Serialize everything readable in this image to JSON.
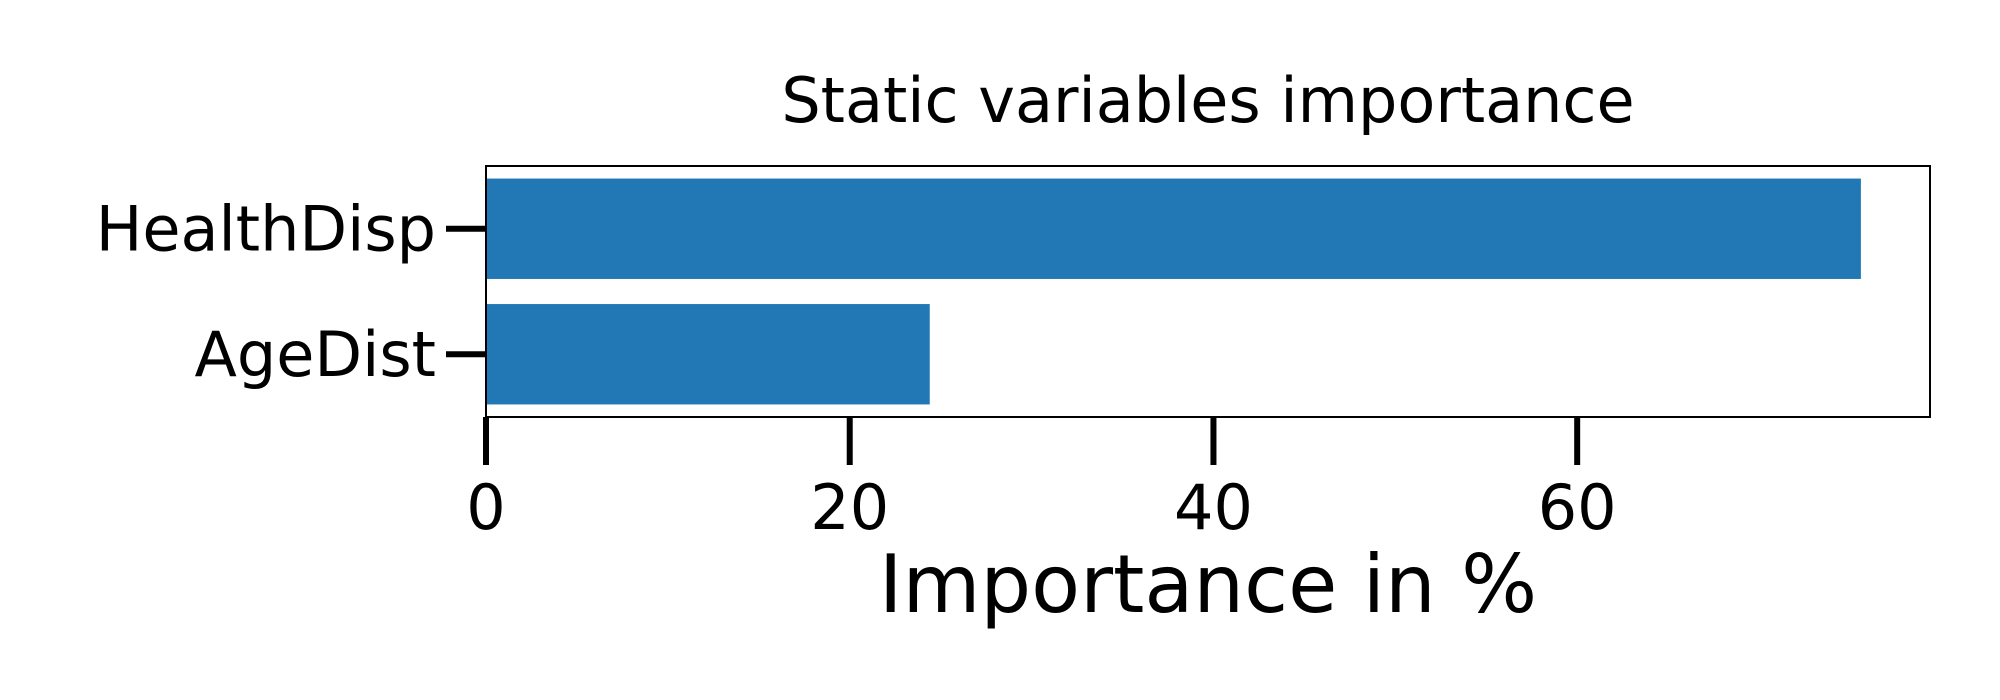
{
  "chart_data": {
    "type": "bar",
    "orientation": "horizontal",
    "title": "Static variables importance",
    "xlabel": "Importance in %",
    "ylabel": "",
    "categories": [
      "HealthDisp",
      "AgeDist"
    ],
    "values": [
      75.6,
      24.4
    ],
    "xlim": [
      0,
      79.4
    ],
    "xticks": [
      "0",
      "20",
      "40",
      "60"
    ],
    "grid": false,
    "legend": "none",
    "colors": {
      "bar": "#2178b5",
      "axis": "#000000"
    }
  }
}
